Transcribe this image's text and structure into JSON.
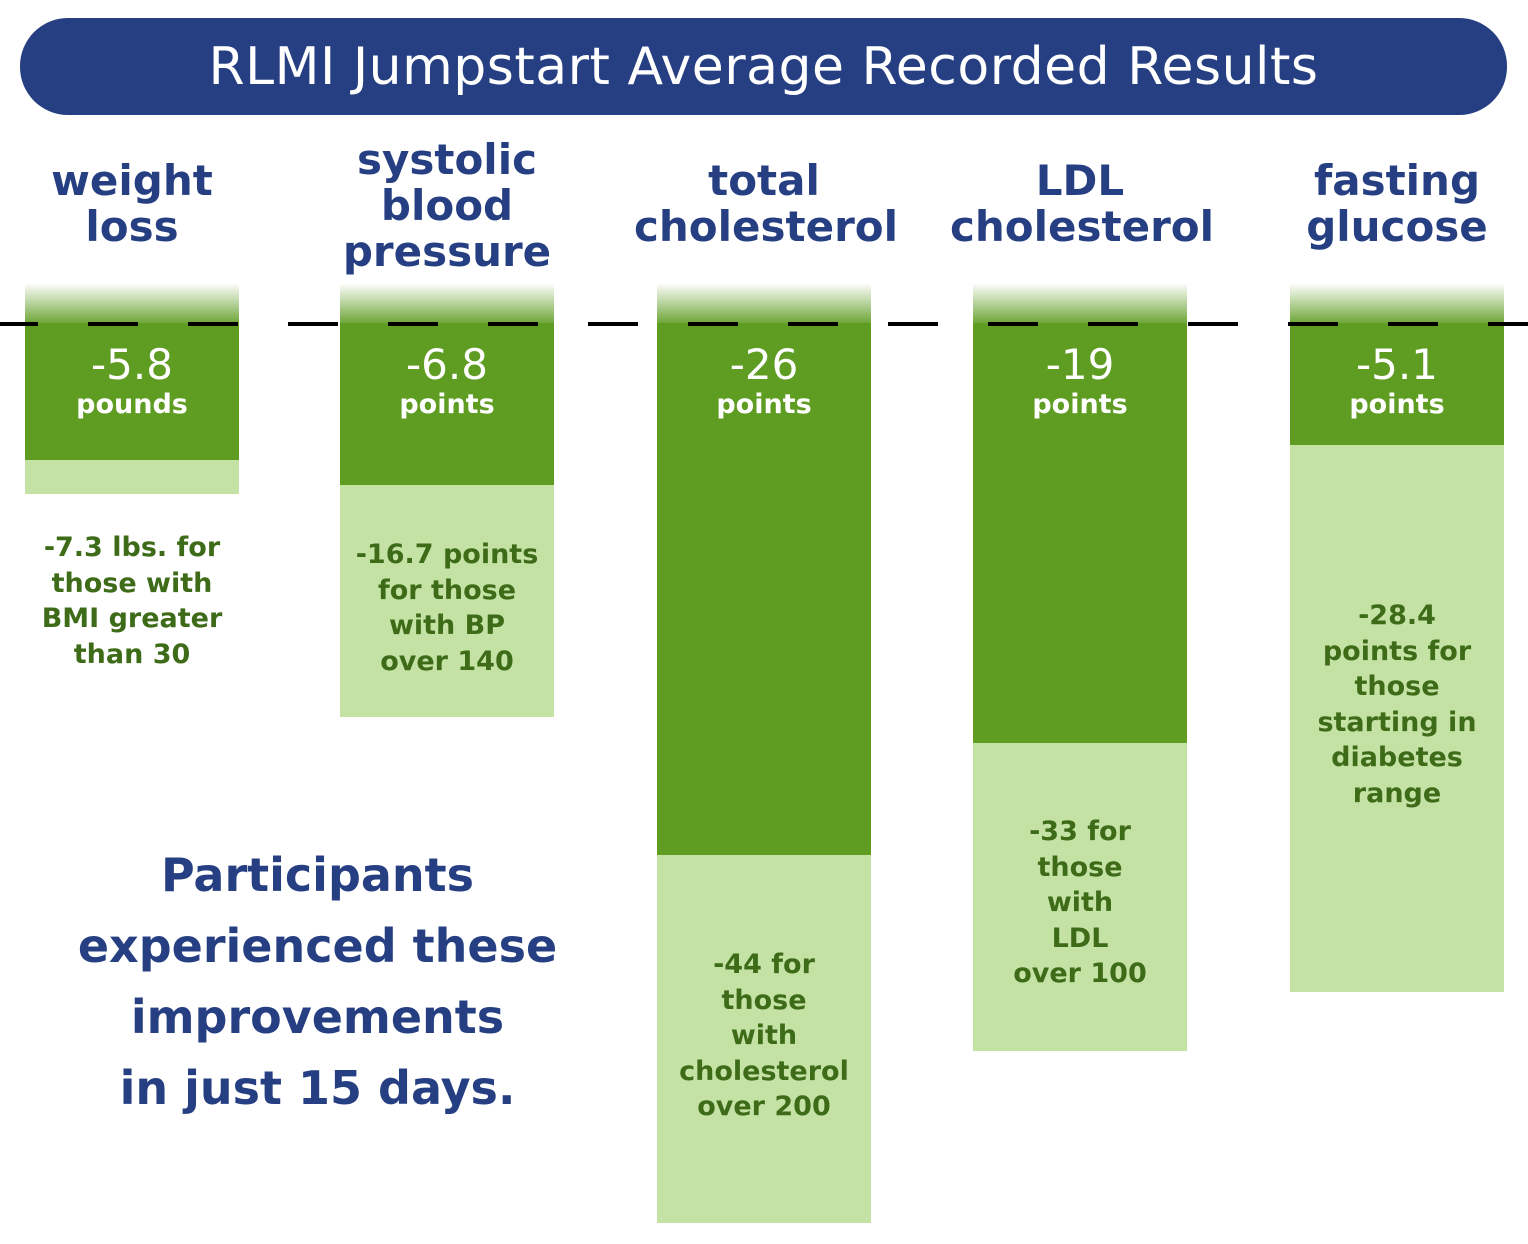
{
  "title": "RLMI Jumpstart Average Recorded Results",
  "tagline": "Participants\nexperienced these\nimprovements\nin just 15 days.",
  "colors": {
    "banner": "#263f82",
    "label_text": "#263f82",
    "main_bar": "#5e9c22",
    "sub_bar": "#c3e2a4",
    "sub_text": "#3d6b18"
  },
  "chart_data": {
    "type": "bar",
    "title": "RLMI Jumpstart Average Recorded Results",
    "orientation": "downward",
    "baseline": 0,
    "categories": [
      "weight loss",
      "systolic blood pressure",
      "total cholesterol",
      "LDL cholesterol",
      "fasting glucose"
    ],
    "category_labels": [
      "weight\nloss",
      "systolic\nblood\npressure",
      "total\ncholesterol",
      "LDL\ncholesterol",
      "fasting\nglucose"
    ],
    "series": [
      {
        "name": "average change",
        "values": [
          -5.8,
          -6.8,
          -26,
          -19,
          -5.1
        ],
        "display": [
          "-5.8",
          "-6.8",
          "-26",
          "-19",
          "-5.1"
        ],
        "units": [
          "pounds",
          "points",
          "points",
          "points",
          "points"
        ]
      },
      {
        "name": "change for at-risk subgroup",
        "values": [
          -7.3,
          -16.7,
          -44,
          -33,
          -28.4
        ],
        "notes": [
          "-7.3 lbs. for\nthose with\nBMI greater\nthan 30",
          "-16.7 points\nfor those\nwith BP\nover 140",
          "-44 for\nthose\nwith\ncholesterol\nover 200",
          "-33 for\nthose\nwith\nLDL\nover 100",
          "-28.4\npoints for\nthose\nstarting in\ndiabetes\nrange"
        ]
      }
    ],
    "legend": "none",
    "grid": false,
    "baseline_style": "dashed"
  }
}
